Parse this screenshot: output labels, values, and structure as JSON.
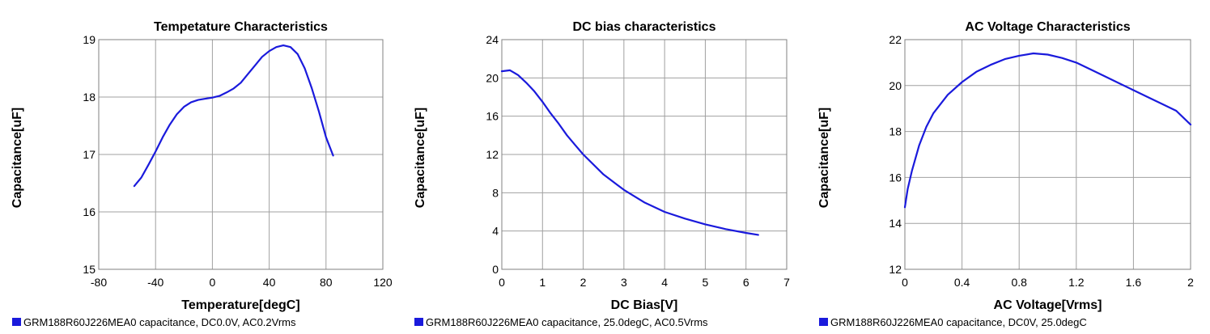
{
  "chart_data": [
    {
      "type": "line",
      "title": "Tempetature    Characteristics",
      "xlabel": "Temperature[degC]",
      "ylabel": "Capacitance[uF]",
      "xlim": [
        -80,
        120
      ],
      "ylim": [
        15,
        19
      ],
      "xticks": [
        -80,
        -40,
        0,
        40,
        80,
        120
      ],
      "yticks": [
        15,
        16,
        17,
        18,
        19
      ],
      "grid": true,
      "series": [
        {
          "name": "GRM188R60J226MEA0 capacitance, DC0.0V, AC0.2Vrms",
          "color": "#1a1adc",
          "x": [
            -55,
            -50,
            -45,
            -40,
            -35,
            -30,
            -25,
            -20,
            -15,
            -10,
            -5,
            0,
            5,
            10,
            15,
            20,
            25,
            30,
            35,
            40,
            45,
            50,
            55,
            60,
            65,
            70,
            75,
            80,
            85
          ],
          "y": [
            16.45,
            16.6,
            16.82,
            17.05,
            17.3,
            17.52,
            17.7,
            17.83,
            17.91,
            17.95,
            17.97,
            17.99,
            18.02,
            18.08,
            18.15,
            18.25,
            18.4,
            18.55,
            18.7,
            18.8,
            18.87,
            18.9,
            18.87,
            18.75,
            18.5,
            18.15,
            17.75,
            17.3,
            16.98
          ]
        }
      ]
    },
    {
      "type": "line",
      "title": "DC bias characteristics",
      "xlabel": "DC Bias[V]",
      "ylabel": "Capacitance[uF]",
      "xlim": [
        0,
        7
      ],
      "ylim": [
        0,
        24
      ],
      "xticks": [
        0,
        1,
        2,
        3,
        4,
        5,
        6,
        7
      ],
      "yticks": [
        0,
        4,
        8,
        12,
        16,
        20,
        24
      ],
      "grid": true,
      "series": [
        {
          "name": "GRM188R60J226MEA0 capacitance, 25.0degC, AC0.5Vrms",
          "color": "#1a1adc",
          "x": [
            0,
            0.2,
            0.4,
            0.6,
            0.8,
            1.0,
            1.2,
            1.4,
            1.6,
            1.8,
            2.0,
            2.5,
            3.0,
            3.5,
            4.0,
            4.5,
            5.0,
            5.5,
            6.0,
            6.3
          ],
          "y": [
            20.7,
            20.8,
            20.3,
            19.5,
            18.6,
            17.5,
            16.3,
            15.2,
            14.0,
            13.0,
            12.0,
            9.9,
            8.3,
            7.0,
            6.0,
            5.3,
            4.7,
            4.2,
            3.8,
            3.6
          ]
        }
      ]
    },
    {
      "type": "line",
      "title": "AC Voltage Characteristics",
      "xlabel": "AC Voltage[Vrms]",
      "ylabel": "Capacitance[uF]",
      "xlim": [
        0,
        2
      ],
      "ylim": [
        12,
        22
      ],
      "xticks": [
        0,
        0.4,
        0.8,
        1.2,
        1.6,
        2
      ],
      "yticks": [
        12,
        14,
        16,
        18,
        20,
        22
      ],
      "grid": true,
      "series": [
        {
          "name": "GRM188R60J226MEA0 capacitance, DC0V, 25.0degC",
          "color": "#1a1adc",
          "x": [
            0,
            0.02,
            0.05,
            0.1,
            0.15,
            0.2,
            0.3,
            0.4,
            0.5,
            0.6,
            0.7,
            0.8,
            0.9,
            1.0,
            1.1,
            1.2,
            1.3,
            1.4,
            1.5,
            1.6,
            1.7,
            1.8,
            1.9,
            2.0
          ],
          "y": [
            14.7,
            15.5,
            16.3,
            17.4,
            18.2,
            18.8,
            19.6,
            20.15,
            20.6,
            20.9,
            21.15,
            21.3,
            21.4,
            21.35,
            21.2,
            21.0,
            20.7,
            20.4,
            20.1,
            19.8,
            19.5,
            19.2,
            18.9,
            18.3
          ]
        }
      ]
    }
  ]
}
